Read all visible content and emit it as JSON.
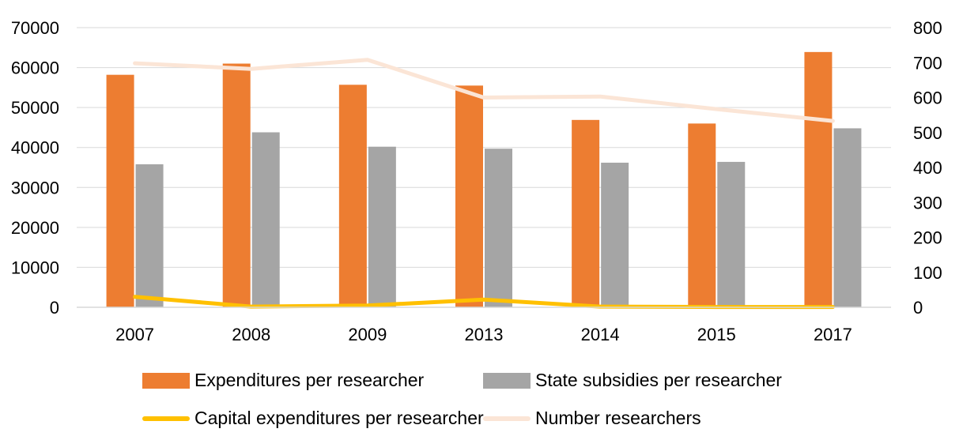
{
  "chart_data": {
    "type": "bar",
    "categories": [
      "2007",
      "2008",
      "2009",
      "2013",
      "2014",
      "2015",
      "2017"
    ],
    "series": [
      {
        "name": "Expenditures per researcher",
        "kind": "bar",
        "axis": "left",
        "color": "#ED7D31",
        "values": [
          58200,
          61000,
          55700,
          55500,
          46900,
          46000,
          63900
        ]
      },
      {
        "name": "State subsidies per researcher",
        "kind": "bar",
        "axis": "left",
        "color": "#A5A5A5",
        "values": [
          35800,
          43800,
          40200,
          39700,
          36200,
          36400,
          44800
        ]
      },
      {
        "name": "Capital expenditures per researcher",
        "kind": "line",
        "axis": "right",
        "color": "#FFC000",
        "values": [
          30,
          2,
          5,
          22,
          2,
          1,
          1
        ]
      },
      {
        "name": "Number researchers",
        "kind": "line",
        "axis": "right",
        "color": "#FBE5D6",
        "values": [
          698,
          682,
          708,
          600,
          603,
          567,
          533
        ]
      }
    ],
    "y_left": {
      "min": 0,
      "max": 70000,
      "ticks": [
        "0",
        "10000",
        "20000",
        "30000",
        "40000",
        "50000",
        "60000",
        "70000"
      ]
    },
    "y_right": {
      "min": 0,
      "max": 800,
      "ticks": [
        "0",
        "100",
        "200",
        "300",
        "400",
        "500",
        "600",
        "700",
        "800"
      ]
    },
    "grid": true,
    "legend_position": "bottom",
    "title": "",
    "xlabel": "",
    "ylabel": ""
  }
}
